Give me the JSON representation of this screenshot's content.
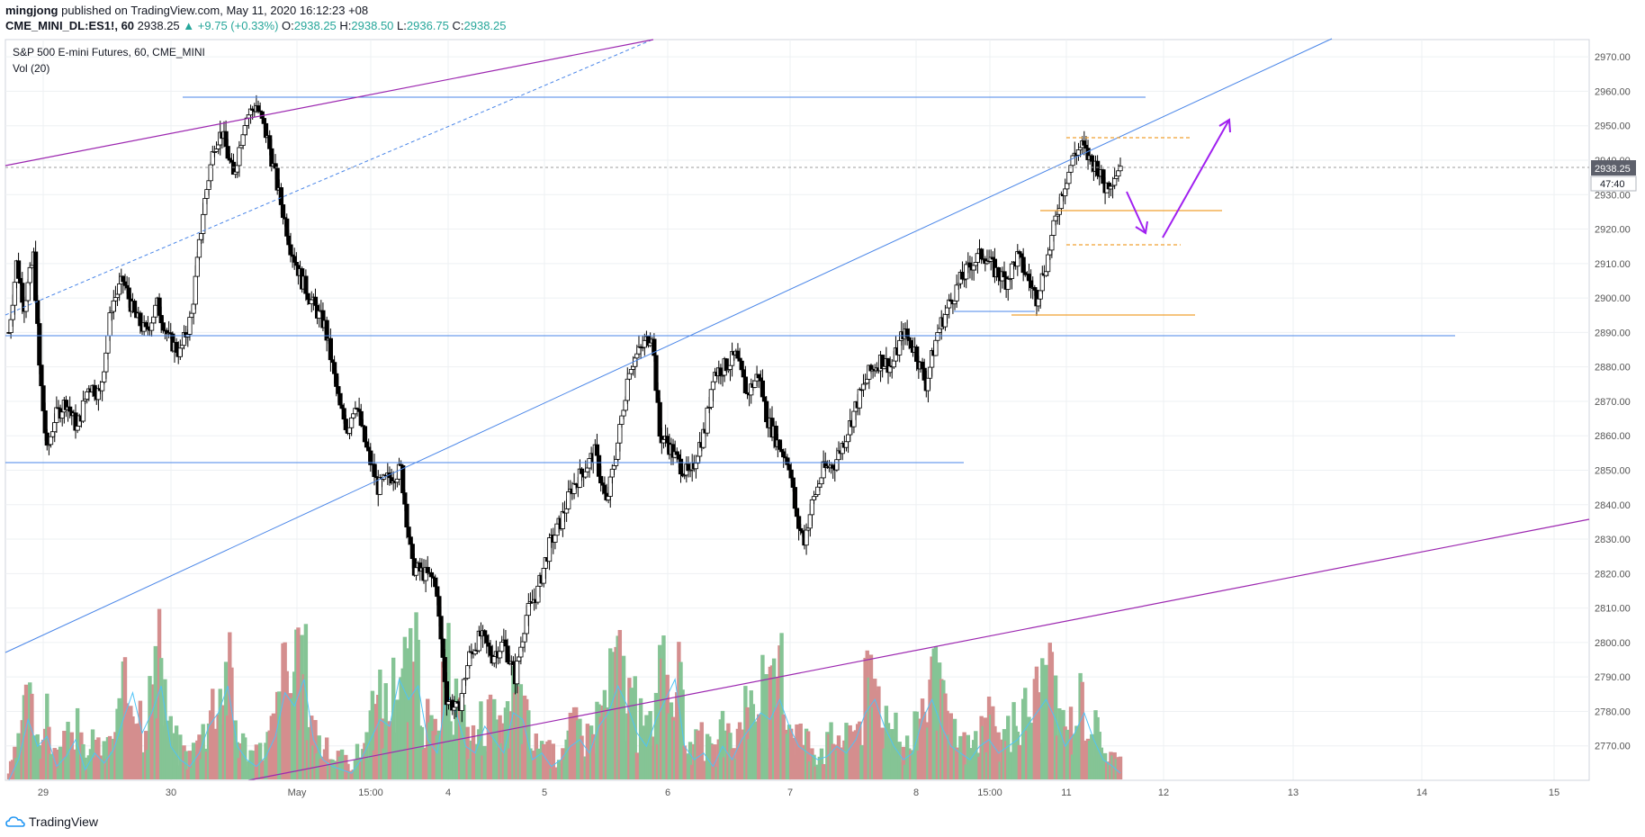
{
  "header": {
    "author": "mingjong",
    "published": "published on TradingView.com, May 11, 2020 16:12:23 +08",
    "symbol": "CME_MINI_DL:ES1!, 60",
    "last": "2938.25",
    "change": "+9.75 (+0.33%)",
    "o_label": "O:",
    "o_value": "2938.25",
    "h_label": "H:",
    "h_value": "2938.50",
    "l_label": "L:",
    "l_value": "2936.75",
    "c_label": "C:",
    "c_value": "2938.25"
  },
  "legend": {
    "instrument": "S&P 500 E-mini Futures, 60, CME_MINI",
    "volume": "Vol (20)"
  },
  "price_tag": "2938.25",
  "countdown_tag": "47:40",
  "footer": {
    "brand": "TradingView"
  },
  "colors": {
    "up": "#ffffff",
    "down": "#000000",
    "vol_up": "#85c495",
    "vol_down": "#d48e8e",
    "vol_ma": "#4fc3f7",
    "trend_blue": "#4a86e8",
    "trend_purple": "#9c27b0",
    "level_orange": "#f0a030",
    "arrow": "#a020f0"
  },
  "chart_data": {
    "type": "candlestick",
    "title": "S&P 500 E-mini Futures, 60, CME_MINI",
    "ylim": [
      2760,
      2975
    ],
    "y_ticks": [
      "2970.00",
      "2960.00",
      "2950.00",
      "2940.00",
      "2930.00",
      "2920.00",
      "2910.00",
      "2900.00",
      "2890.00",
      "2880.00",
      "2870.00",
      "2860.00",
      "2850.00",
      "2840.00",
      "2830.00",
      "2820.00",
      "2810.00",
      "2800.00",
      "2790.00",
      "2780.00",
      "2770.00"
    ],
    "x_ticks": [
      "29",
      "30",
      "May",
      "15:00",
      "4",
      "5",
      "6",
      "7",
      "8",
      "15:00",
      "11",
      "12",
      "13",
      "14",
      "15"
    ],
    "close_path": [
      [
        0,
        2890
      ],
      [
        4,
        2910
      ],
      [
        8,
        2898
      ],
      [
        13,
        2912
      ],
      [
        16,
        2880
      ],
      [
        20,
        2855
      ],
      [
        24,
        2865
      ],
      [
        30,
        2870
      ],
      [
        36,
        2862
      ],
      [
        42,
        2875
      ],
      [
        48,
        2872
      ],
      [
        54,
        2898
      ],
      [
        60,
        2905
      ],
      [
        66,
        2895
      ],
      [
        72,
        2890
      ],
      [
        78,
        2898
      ],
      [
        84,
        2888
      ],
      [
        90,
        2884
      ],
      [
        96,
        2895
      ],
      [
        102,
        2925
      ],
      [
        108,
        2945
      ],
      [
        112,
        2948
      ],
      [
        118,
        2935
      ],
      [
        124,
        2952
      ],
      [
        130,
        2956
      ],
      [
        136,
        2946
      ],
      [
        142,
        2930
      ],
      [
        148,
        2915
      ],
      [
        154,
        2905
      ],
      [
        160,
        2898
      ],
      [
        166,
        2892
      ],
      [
        170,
        2880
      ],
      [
        174,
        2868
      ],
      [
        178,
        2862
      ],
      [
        182,
        2870
      ],
      [
        188,
        2856
      ],
      [
        194,
        2845
      ],
      [
        200,
        2848
      ],
      [
        206,
        2850
      ],
      [
        212,
        2822
      ],
      [
        218,
        2820
      ],
      [
        224,
        2818
      ],
      [
        230,
        2784
      ],
      [
        236,
        2780
      ],
      [
        242,
        2796
      ],
      [
        248,
        2802
      ],
      [
        254,
        2796
      ],
      [
        260,
        2800
      ],
      [
        266,
        2790
      ],
      [
        272,
        2808
      ],
      [
        278,
        2815
      ],
      [
        284,
        2828
      ],
      [
        290,
        2835
      ],
      [
        296,
        2845
      ],
      [
        302,
        2850
      ],
      [
        308,
        2855
      ],
      [
        314,
        2840
      ],
      [
        320,
        2858
      ],
      [
        326,
        2880
      ],
      [
        332,
        2885
      ],
      [
        338,
        2890
      ],
      [
        342,
        2860
      ],
      [
        346,
        2858
      ],
      [
        352,
        2852
      ],
      [
        358,
        2848
      ],
      [
        362,
        2856
      ],
      [
        366,
        2862
      ],
      [
        370,
        2878
      ],
      [
        376,
        2880
      ],
      [
        382,
        2883
      ],
      [
        388,
        2872
      ],
      [
        394,
        2878
      ],
      [
        398,
        2866
      ],
      [
        404,
        2858
      ],
      [
        410,
        2852
      ],
      [
        414,
        2835
      ],
      [
        418,
        2830
      ],
      [
        422,
        2840
      ],
      [
        428,
        2850
      ],
      [
        434,
        2852
      ],
      [
        440,
        2860
      ],
      [
        446,
        2870
      ],
      [
        452,
        2878
      ],
      [
        458,
        2882
      ],
      [
        464,
        2880
      ],
      [
        470,
        2890
      ],
      [
        476,
        2885
      ],
      [
        482,
        2875
      ],
      [
        488,
        2890
      ],
      [
        494,
        2898
      ],
      [
        500,
        2905
      ],
      [
        506,
        2910
      ],
      [
        512,
        2913
      ],
      [
        518,
        2908
      ],
      [
        524,
        2905
      ],
      [
        530,
        2912
      ],
      [
        536,
        2905
      ],
      [
        540,
        2900
      ],
      [
        546,
        2912
      ],
      [
        552,
        2928
      ],
      [
        556,
        2935
      ],
      [
        560,
        2942
      ],
      [
        564,
        2944
      ],
      [
        568,
        2940
      ],
      [
        572,
        2938
      ],
      [
        576,
        2932
      ],
      [
        580,
        2935
      ],
      [
        584,
        2938
      ]
    ],
    "volume_series": [
      [
        0,
        2
      ],
      [
        5,
        8
      ],
      [
        10,
        20
      ],
      [
        15,
        12
      ],
      [
        20,
        15
      ],
      [
        25,
        6
      ],
      [
        30,
        9
      ],
      [
        35,
        14
      ],
      [
        40,
        5
      ],
      [
        45,
        10
      ],
      [
        50,
        7
      ],
      [
        55,
        11
      ],
      [
        60,
        20
      ],
      [
        65,
        28
      ],
      [
        70,
        16
      ],
      [
        75,
        22
      ],
      [
        80,
        30
      ],
      [
        85,
        12
      ],
      [
        90,
        8
      ],
      [
        95,
        6
      ],
      [
        100,
        10
      ],
      [
        105,
        18
      ],
      [
        110,
        22
      ],
      [
        115,
        30
      ],
      [
        120,
        12
      ],
      [
        125,
        8
      ],
      [
        130,
        6
      ],
      [
        135,
        9
      ],
      [
        140,
        15
      ],
      [
        145,
        28
      ],
      [
        150,
        24
      ],
      [
        155,
        32
      ],
      [
        160,
        14
      ],
      [
        165,
        8
      ],
      [
        170,
        6
      ],
      [
        175,
        5
      ],
      [
        180,
        4
      ],
      [
        185,
        8
      ],
      [
        190,
        14
      ],
      [
        195,
        20
      ],
      [
        200,
        18
      ],
      [
        205,
        32
      ],
      [
        210,
        26
      ],
      [
        215,
        30
      ],
      [
        220,
        14
      ],
      [
        225,
        10
      ],
      [
        230,
        28
      ],
      [
        235,
        22
      ],
      [
        240,
        12
      ],
      [
        245,
        10
      ],
      [
        250,
        18
      ],
      [
        255,
        14
      ],
      [
        260,
        10
      ],
      [
        265,
        22
      ],
      [
        270,
        20
      ],
      [
        275,
        8
      ],
      [
        280,
        10
      ],
      [
        285,
        6
      ],
      [
        290,
        8
      ],
      [
        295,
        12
      ],
      [
        300,
        14
      ],
      [
        305,
        10
      ],
      [
        310,
        18
      ],
      [
        315,
        22
      ],
      [
        320,
        30
      ],
      [
        325,
        24
      ],
      [
        330,
        16
      ],
      [
        335,
        12
      ],
      [
        340,
        20
      ],
      [
        345,
        26
      ],
      [
        350,
        32
      ],
      [
        355,
        12
      ],
      [
        360,
        8
      ],
      [
        365,
        10
      ],
      [
        370,
        6
      ],
      [
        375,
        12
      ],
      [
        380,
        8
      ],
      [
        385,
        14
      ],
      [
        390,
        18
      ],
      [
        395,
        22
      ],
      [
        400,
        20
      ],
      [
        405,
        26
      ],
      [
        410,
        18
      ],
      [
        415,
        12
      ],
      [
        420,
        10
      ],
      [
        425,
        8
      ],
      [
        430,
        9
      ],
      [
        435,
        12
      ],
      [
        440,
        10
      ],
      [
        445,
        14
      ],
      [
        450,
        22
      ],
      [
        455,
        26
      ],
      [
        460,
        18
      ],
      [
        465,
        12
      ],
      [
        470,
        8
      ],
      [
        475,
        10
      ],
      [
        480,
        20
      ],
      [
        485,
        26
      ],
      [
        490,
        18
      ],
      [
        495,
        12
      ],
      [
        500,
        10
      ],
      [
        505,
        8
      ],
      [
        510,
        12
      ],
      [
        515,
        14
      ],
      [
        520,
        10
      ],
      [
        525,
        12
      ],
      [
        530,
        14
      ],
      [
        535,
        18
      ],
      [
        540,
        22
      ],
      [
        545,
        26
      ],
      [
        550,
        20
      ],
      [
        555,
        12
      ],
      [
        560,
        16
      ],
      [
        565,
        22
      ],
      [
        570,
        14
      ],
      [
        575,
        8
      ],
      [
        580,
        6
      ],
      [
        584,
        4
      ]
    ]
  }
}
